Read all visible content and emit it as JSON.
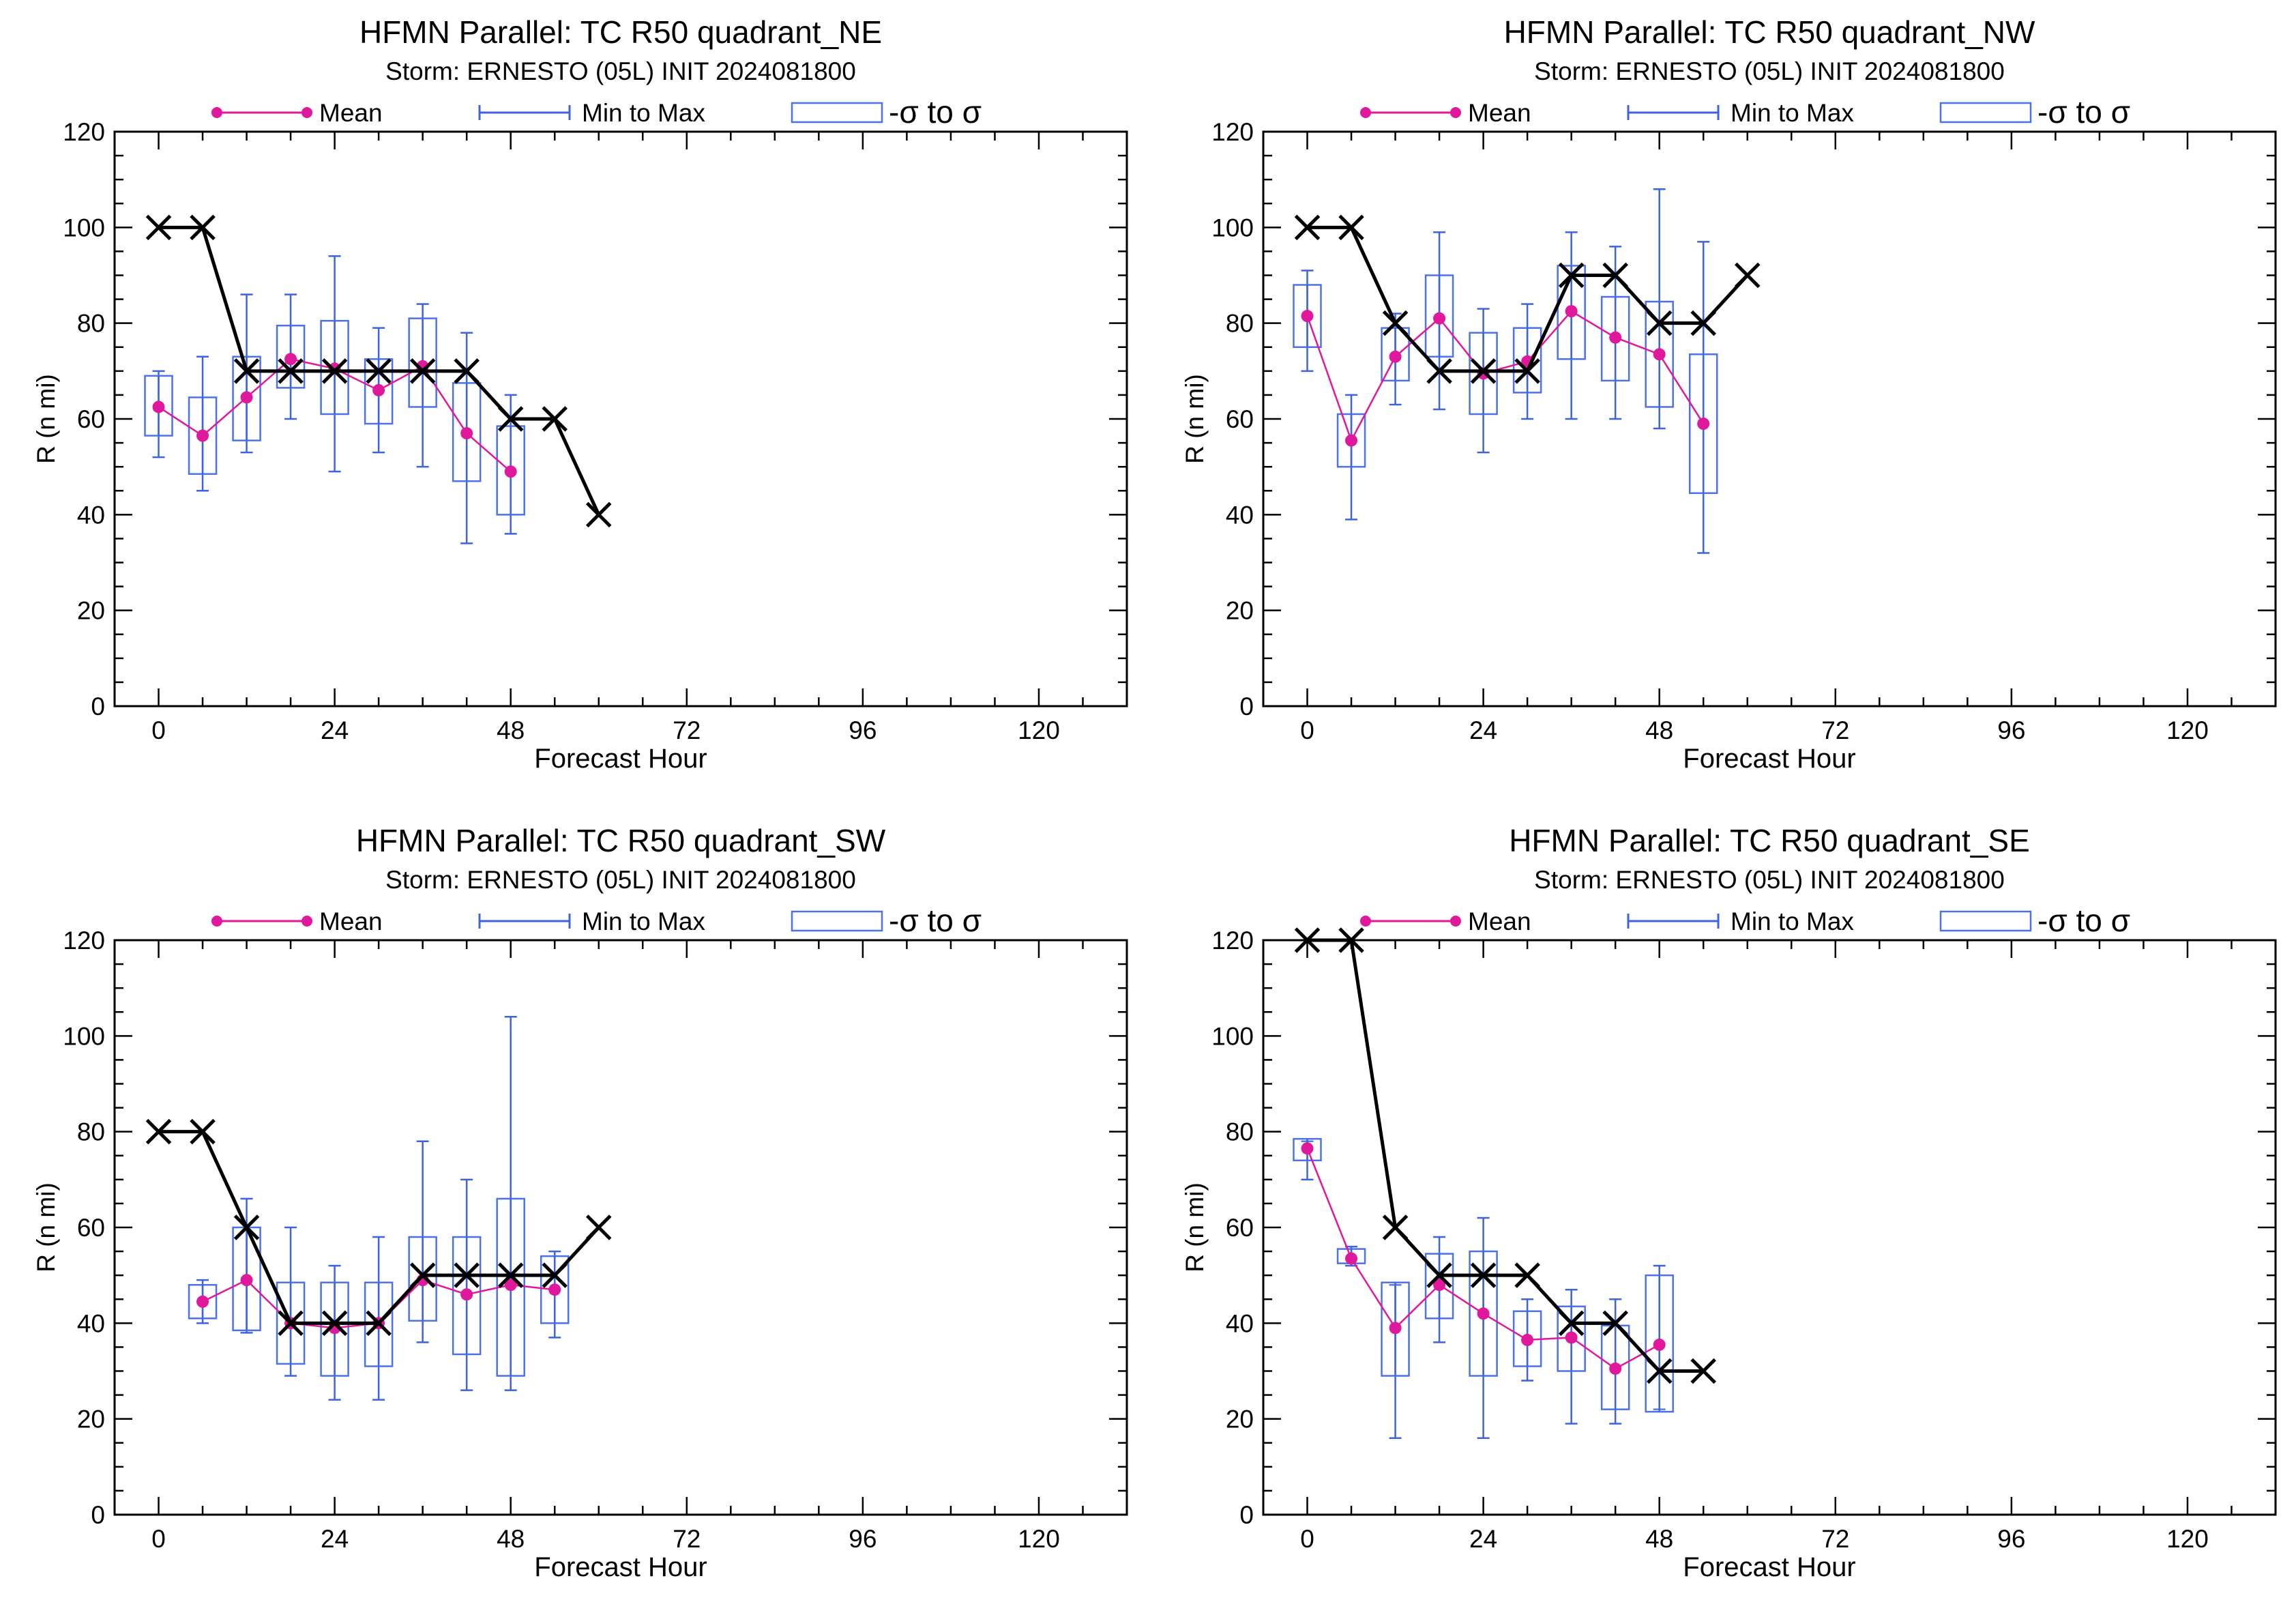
{
  "colors": {
    "mean": "#e0189c",
    "range": "#3d63de",
    "sigma_box": "#4d72e8",
    "observed": "#000000",
    "axes": "#000000"
  },
  "chart_data": [
    {
      "type": "box",
      "title": "HFMN Parallel: TC  R50 quadrant_NE",
      "subtitle": "Storm: ERNESTO (05L) INIT 2024081800",
      "xlabel": "Forecast Hour",
      "ylabel": "R (n mi)",
      "xlim": [
        -6,
        132
      ],
      "ylim": [
        0,
        120
      ],
      "xticks": [
        0,
        24,
        48,
        72,
        96,
        120
      ],
      "yticks": [
        0,
        20,
        40,
        60,
        80,
        100,
        120
      ],
      "legend": {
        "position": "top",
        "entries": [
          "Mean",
          "Min to Max",
          "-σ to σ"
        ]
      },
      "x": [
        0,
        6,
        12,
        18,
        24,
        30,
        36,
        42,
        48
      ],
      "mean": [
        62.5,
        56.5,
        64.5,
        72.5,
        70.5,
        66,
        71,
        57,
        49
      ],
      "min": [
        52,
        45,
        53,
        60,
        49,
        53,
        50,
        34,
        36
      ],
      "max": [
        70,
        73,
        86,
        86,
        94,
        79,
        84,
        78,
        65
      ],
      "sigma_low": [
        56.5,
        48.5,
        55.5,
        66.5,
        61,
        59,
        62.5,
        47,
        40
      ],
      "sigma_high": [
        69,
        64.5,
        73,
        79.5,
        80.5,
        72.5,
        81,
        67.5,
        58.5
      ],
      "observed": {
        "x": [
          0,
          6,
          12,
          18,
          24,
          30,
          36,
          42,
          48,
          54,
          60
        ],
        "y": [
          100,
          100,
          70,
          70,
          70,
          70,
          70,
          70,
          60,
          60,
          40
        ]
      }
    },
    {
      "type": "box",
      "title": "HFMN Parallel: TC  R50 quadrant_NW",
      "subtitle": "Storm: ERNESTO (05L) INIT 2024081800",
      "xlabel": "Forecast Hour",
      "ylabel": "R (n mi)",
      "xlim": [
        -6,
        132
      ],
      "ylim": [
        0,
        120
      ],
      "xticks": [
        0,
        24,
        48,
        72,
        96,
        120
      ],
      "yticks": [
        0,
        20,
        40,
        60,
        80,
        100,
        120
      ],
      "legend": {
        "position": "top",
        "entries": [
          "Mean",
          "Min to Max",
          "-σ to σ"
        ]
      },
      "x": [
        0,
        6,
        12,
        18,
        24,
        30,
        36,
        42,
        48,
        54
      ],
      "mean": [
        81.5,
        55.5,
        73,
        81,
        69.5,
        72,
        82.5,
        77,
        73.5,
        59
      ],
      "min": [
        70,
        39,
        63,
        62,
        53,
        60,
        60,
        60,
        58,
        32
      ],
      "max": [
        91,
        65,
        82,
        99,
        83,
        84,
        99,
        96,
        108,
        97
      ],
      "sigma_low": [
        75,
        50,
        68,
        73,
        61,
        65.5,
        72.5,
        68,
        62.5,
        44.5
      ],
      "sigma_high": [
        88,
        61,
        79,
        90,
        78,
        79,
        92,
        85.5,
        84.5,
        73.5
      ],
      "observed": {
        "x": [
          0,
          6,
          12,
          18,
          24,
          30,
          36,
          42,
          48,
          54,
          60
        ],
        "y": [
          100,
          100,
          80,
          70,
          70,
          70,
          90,
          90,
          80,
          80,
          90
        ]
      }
    },
    {
      "type": "box",
      "title": "HFMN Parallel: TC  R50 quadrant_SW",
      "subtitle": "Storm: ERNESTO (05L) INIT 2024081800",
      "xlabel": "Forecast Hour",
      "ylabel": "R (n mi)",
      "xlim": [
        -6,
        132
      ],
      "ylim": [
        0,
        120
      ],
      "xticks": [
        0,
        24,
        48,
        72,
        96,
        120
      ],
      "yticks": [
        0,
        20,
        40,
        60,
        80,
        100,
        120
      ],
      "legend": {
        "position": "top",
        "entries": [
          "Mean",
          "Min to Max",
          "-σ to σ"
        ]
      },
      "x": [
        6,
        12,
        18,
        24,
        30,
        36,
        42,
        48,
        54
      ],
      "mean": [
        44.5,
        49,
        40,
        39,
        40,
        49,
        46,
        48,
        47
      ],
      "min": [
        40,
        38,
        29,
        24,
        24,
        36,
        26,
        26,
        37
      ],
      "max": [
        49,
        66,
        60,
        52,
        58,
        78,
        70,
        104,
        55
      ],
      "sigma_low": [
        41,
        38.5,
        31.5,
        29,
        31,
        40.5,
        33.5,
        29,
        40
      ],
      "sigma_high": [
        48,
        60,
        48.5,
        48.5,
        48.5,
        58,
        58,
        66,
        54
      ],
      "observed": {
        "x": [
          0,
          6,
          12,
          18,
          24,
          30,
          36,
          42,
          48,
          54,
          60
        ],
        "y": [
          80,
          80,
          60,
          40,
          40,
          40,
          50,
          50,
          50,
          50,
          60
        ]
      }
    },
    {
      "type": "box",
      "title": "HFMN Parallel: TC  R50 quadrant_SE",
      "subtitle": "Storm: ERNESTO (05L) INIT 2024081800",
      "xlabel": "Forecast Hour",
      "ylabel": "R (n mi)",
      "xlim": [
        -6,
        132
      ],
      "ylim": [
        0,
        120
      ],
      "xticks": [
        0,
        24,
        48,
        72,
        96,
        120
      ],
      "yticks": [
        0,
        20,
        40,
        60,
        80,
        100,
        120
      ],
      "legend": {
        "position": "top",
        "entries": [
          "Mean",
          "Min to Max",
          "-σ to σ"
        ]
      },
      "x": [
        0,
        6,
        12,
        18,
        24,
        30,
        36,
        42,
        48
      ],
      "mean": [
        76.5,
        53.5,
        39,
        48,
        42,
        36.5,
        37,
        30.5,
        35.5
      ],
      "min": [
        70,
        52,
        16,
        36,
        16,
        28,
        19,
        19,
        22
      ],
      "max": [
        78,
        56,
        48,
        58,
        62,
        45,
        47,
        45,
        52
      ],
      "sigma_low": [
        74,
        52.5,
        29,
        41,
        29,
        31,
        30,
        22,
        21.5
      ],
      "sigma_high": [
        78.5,
        55.5,
        48.5,
        54.5,
        55,
        42.5,
        43.5,
        39.5,
        50
      ],
      "observed": {
        "x": [
          0,
          6,
          12,
          18,
          24,
          30,
          36,
          42,
          48,
          54
        ],
        "y": [
          120,
          120,
          60,
          50,
          50,
          50,
          40,
          40,
          30,
          30
        ]
      }
    }
  ]
}
